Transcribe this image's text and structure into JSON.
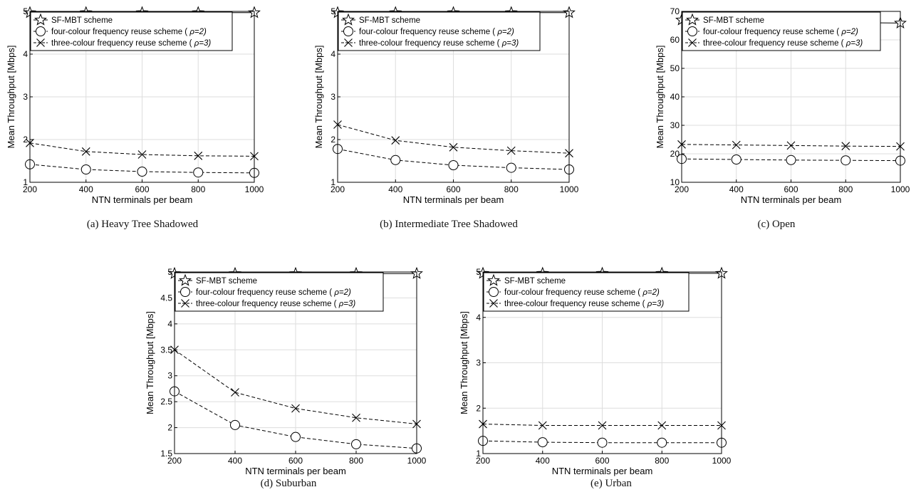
{
  "figure": {
    "style": {
      "line_color": "#000000",
      "grid_color": "#dddddd",
      "background": "#ffffff"
    }
  },
  "chart_data": [
    {
      "type": "line",
      "caption": "(a) Heavy Tree Shadowed",
      "xlabel": "NTN terminals per beam",
      "ylabel": "Mean Throughput [Mbps]",
      "x": [
        200,
        400,
        600,
        800,
        1000
      ],
      "xticks": [
        "200",
        "400",
        "600",
        "800",
        "1000"
      ],
      "ylim": [
        1,
        5
      ],
      "yticks": [
        "1",
        "2",
        "3",
        "4",
        "5"
      ],
      "grid": true,
      "legend": "top-left",
      "series": [
        {
          "name": "SF-MBT scheme",
          "marker": "star",
          "line": "solid",
          "values": [
            4.97,
            4.97,
            4.97,
            4.97,
            4.97
          ]
        },
        {
          "name_prefix": "four-colour frequency reuse scheme (",
          "name_rho": "ρ=2)",
          "marker": "circle",
          "line": "dashed",
          "values": [
            1.42,
            1.3,
            1.25,
            1.23,
            1.22
          ]
        },
        {
          "name_prefix": "three-colour frequency reuse scheme (",
          "name_rho": "ρ=3)",
          "marker": "x",
          "line": "dashed",
          "values": [
            1.92,
            1.72,
            1.65,
            1.62,
            1.61
          ]
        }
      ]
    },
    {
      "type": "line",
      "caption": "(b) Intermediate Tree Shadowed",
      "xlabel": "NTN terminals per beam",
      "ylabel": "Mean Throughput [Mbps]",
      "x": [
        200,
        400,
        600,
        800,
        1000
      ],
      "xticks": [
        "200",
        "400",
        "600",
        "800",
        "1000"
      ],
      "ylim": [
        1,
        5
      ],
      "yticks": [
        "1",
        "2",
        "3",
        "4",
        "5"
      ],
      "grid": true,
      "legend": "top-left",
      "series": [
        {
          "name": "SF-MBT scheme",
          "marker": "star",
          "line": "solid",
          "values": [
            4.97,
            4.97,
            4.97,
            4.97,
            4.97
          ]
        },
        {
          "name_prefix": "four-colour frequency reuse scheme (",
          "name_rho": "ρ=2)",
          "marker": "circle",
          "line": "dashed",
          "values": [
            1.78,
            1.52,
            1.4,
            1.34,
            1.3
          ]
        },
        {
          "name_prefix": "three-colour frequency reuse scheme (",
          "name_rho": "ρ=3)",
          "marker": "x",
          "line": "dashed",
          "values": [
            2.35,
            1.98,
            1.82,
            1.74,
            1.68
          ]
        }
      ]
    },
    {
      "type": "line",
      "caption": "(c) Open",
      "xlabel": "NTN terminals per beam",
      "ylabel": "Mean Throughput [Mbps]",
      "x": [
        200,
        400,
        600,
        800,
        1000
      ],
      "xticks": [
        "200",
        "400",
        "600",
        "800",
        "1000"
      ],
      "ylim": [
        10,
        70
      ],
      "yticks": [
        "10",
        "20",
        "30",
        "40",
        "50",
        "60",
        "70"
      ],
      "grid": true,
      "legend": "top-left",
      "series": [
        {
          "name": "SF-MBT scheme",
          "marker": "star",
          "line": "solid",
          "values": [
            67,
            66.6,
            66.3,
            66.1,
            65.9
          ]
        },
        {
          "name_prefix": "four-colour frequency reuse scheme (",
          "name_rho": "ρ=2)",
          "marker": "circle",
          "line": "dashed",
          "values": [
            18.2,
            18,
            17.8,
            17.7,
            17.6
          ]
        },
        {
          "name_prefix": "three-colour frequency reuse scheme (",
          "name_rho": "ρ=3)",
          "marker": "x",
          "line": "dashed",
          "values": [
            23.3,
            23.1,
            22.9,
            22.7,
            22.6
          ]
        }
      ]
    },
    {
      "type": "line",
      "caption": "(d) Suburban",
      "xlabel": "NTN terminals per beam",
      "ylabel": "Mean Throughput [Mbps]",
      "x": [
        200,
        400,
        600,
        800,
        1000
      ],
      "xticks": [
        "200",
        "400",
        "600",
        "800",
        "1000"
      ],
      "ylim": [
        1.5,
        5
      ],
      "yticks": [
        "1.5",
        "2",
        "2.5",
        "3",
        "3.5",
        "4",
        "4.5",
        "5"
      ],
      "grid": true,
      "legend": "top-left",
      "series": [
        {
          "name": "SF-MBT scheme",
          "marker": "star",
          "line": "solid",
          "values": [
            4.97,
            4.97,
            4.97,
            4.97,
            4.97
          ]
        },
        {
          "name_prefix": "four-colour frequency reuse scheme (",
          "name_rho": "ρ=2)",
          "marker": "circle",
          "line": "dashed",
          "values": [
            2.7,
            2.05,
            1.82,
            1.68,
            1.6
          ]
        },
        {
          "name_prefix": "three-colour frequency reuse scheme (",
          "name_rho": "ρ=3)",
          "marker": "x",
          "line": "dashed",
          "values": [
            3.5,
            2.68,
            2.37,
            2.19,
            2.07
          ]
        }
      ]
    },
    {
      "type": "line",
      "caption": "(e) Urban",
      "xlabel": "NTN terminals per beam",
      "ylabel": "Mean Throughput [Mbps]",
      "x": [
        200,
        400,
        600,
        800,
        1000
      ],
      "xticks": [
        "200",
        "400",
        "600",
        "800",
        "1000"
      ],
      "ylim": [
        1,
        5
      ],
      "yticks": [
        "1",
        "2",
        "3",
        "4",
        "5"
      ],
      "grid": true,
      "legend": "top-left",
      "series": [
        {
          "name": "SF-MBT scheme",
          "marker": "star",
          "line": "solid",
          "values": [
            4.97,
            4.97,
            4.97,
            4.97,
            4.97
          ]
        },
        {
          "name_prefix": "four-colour frequency reuse scheme (",
          "name_rho": "ρ=2)",
          "marker": "circle",
          "line": "dashed",
          "values": [
            1.28,
            1.25,
            1.24,
            1.24,
            1.24
          ]
        },
        {
          "name_prefix": "three-colour frequency reuse scheme (",
          "name_rho": "ρ=3)",
          "marker": "x",
          "line": "dashed",
          "values": [
            1.65,
            1.62,
            1.62,
            1.62,
            1.62
          ]
        }
      ]
    }
  ]
}
